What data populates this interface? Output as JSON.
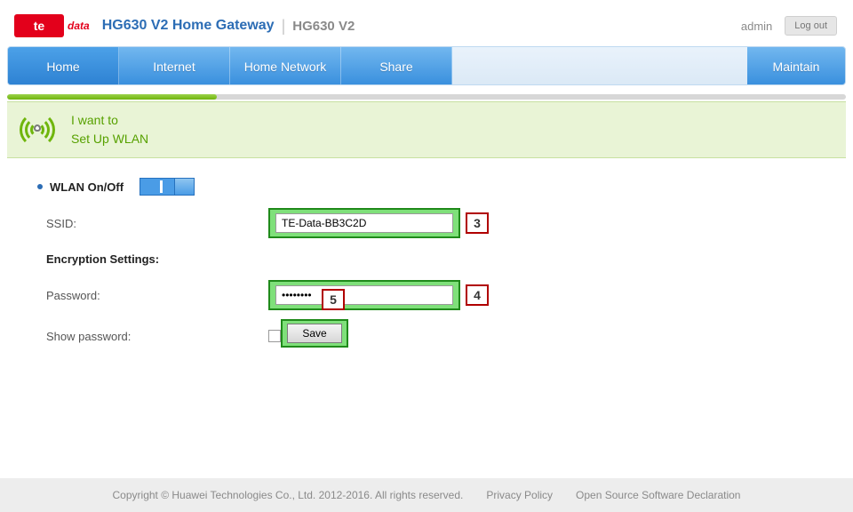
{
  "header": {
    "logo_text": "te",
    "logo_sub": "data",
    "product_title": "HG630 V2 Home Gateway",
    "product_model": "HG630 V2",
    "user": "admin",
    "logout_label": "Log out"
  },
  "nav": {
    "items": [
      "Home",
      "Internet",
      "Home Network",
      "Share"
    ],
    "right_item": "Maintain"
  },
  "progress": {
    "percent": 25,
    "fill_color": "#7fbf14",
    "track_color": "#d7d7d7"
  },
  "banner": {
    "line1": "I want to",
    "line2": "Set Up WLAN",
    "bg_color": "#e9f4d6",
    "text_color": "#57a100"
  },
  "wlan": {
    "onoff_label": "WLAN On/Off",
    "on": true,
    "ssid_label": "SSID:",
    "ssid_value": "TE-Data-BB3C2D",
    "encryption_heading": "Encryption Settings:",
    "password_label": "Password:",
    "password_value": "••••••••",
    "show_password_label": "Show password:",
    "show_password_checked": false,
    "save_label": "Save"
  },
  "callouts": {
    "ssid": "3",
    "password": "4",
    "save": "5"
  },
  "highlight": {
    "bg": "#7fe07a",
    "border": "#1f8a1a",
    "callout_border": "#b00000"
  },
  "footer": {
    "copyright": "Copyright © Huawei Technologies Co., Ltd. 2012-2016. All rights reserved.",
    "privacy": "Privacy Policy",
    "oss": "Open Source Software Declaration"
  }
}
